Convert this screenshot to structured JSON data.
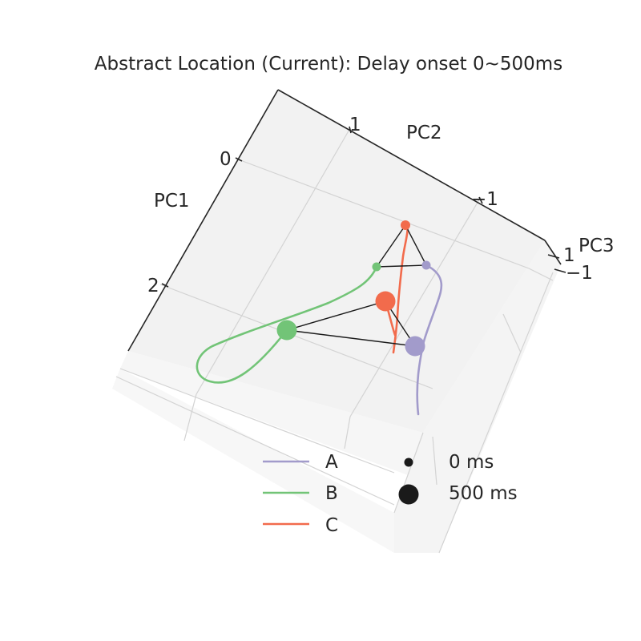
{
  "chart_data": {
    "type": "line",
    "projection": "3d",
    "title": "Abstract Location (Current): Delay onset 0~500ms",
    "axes": {
      "x": {
        "label": "PC1",
        "ticks": [
          "0",
          "2"
        ]
      },
      "y": {
        "label": "PC2",
        "ticks": [
          "1",
          "−1"
        ]
      },
      "z": {
        "label": "PC3",
        "ticks": [
          "1",
          "−1"
        ]
      }
    },
    "grid": true,
    "colors": {
      "A": "#a29bcb",
      "B": "#72c477",
      "C": "#f26b4c",
      "edge": "#1a1a1a"
    },
    "series": [
      {
        "name": "A",
        "color": "#a29bcb"
      },
      {
        "name": "B",
        "color": "#72c477"
      },
      {
        "name": "C",
        "color": "#f26b4c"
      }
    ],
    "time_markers": [
      {
        "label": "0 ms",
        "size": "small"
      },
      {
        "label": "500 ms",
        "size": "large"
      }
    ],
    "legend_placement": "bottom-center"
  }
}
